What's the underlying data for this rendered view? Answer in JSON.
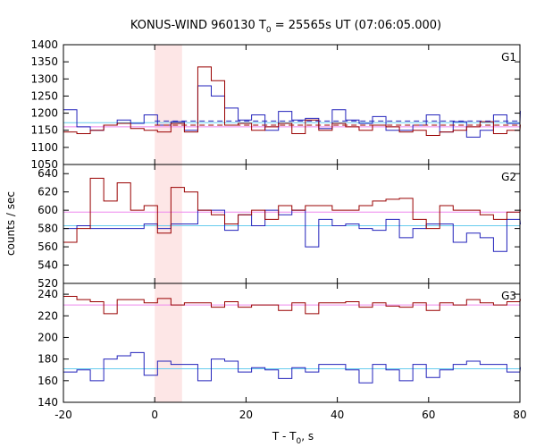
{
  "chart_data": {
    "type": "line",
    "title": "KONUS-WIND 960130 T",
    "title_sub": "0",
    "title_rest": " = 25565s UT (07:06:05.000)",
    "xlabel": "T - T",
    "xlabel_sub": "0",
    "xlabel_rest": ", s",
    "ylabel": "counts / sec",
    "xlim": [
      -20,
      80
    ],
    "xticks": [
      -20,
      0,
      20,
      40,
      60,
      80
    ],
    "highlight": {
      "from": 0,
      "to": 6,
      "color": "#fde6e6"
    },
    "colors": {
      "red": "#990000",
      "blue": "#2222bb",
      "pink": "#ee88ee",
      "cyan": "#66ccee",
      "frame": "#000000"
    },
    "panels": [
      {
        "name": "G1",
        "ylim": [
          1050,
          1400
        ],
        "yticks": [
          1050,
          1100,
          1150,
          1200,
          1250,
          1300,
          1350,
          1400
        ],
        "bin": 2.944,
        "start": -20,
        "red": [
          1145,
          1140,
          1150,
          1165,
          1170,
          1155,
          1150,
          1145,
          1170,
          1145,
          1335,
          1295,
          1165,
          1170,
          1150,
          1160,
          1170,
          1140,
          1180,
          1150,
          1170,
          1160,
          1150,
          1165,
          1160,
          1145,
          1150,
          1135,
          1145,
          1150,
          1160,
          1175,
          1140,
          1150,
          1165
        ],
        "blue": [
          1210,
          1160,
          1150,
          1165,
          1180,
          1170,
          1195,
          1165,
          1175,
          1150,
          1280,
          1250,
          1215,
          1180,
          1195,
          1150,
          1205,
          1180,
          1185,
          1155,
          1210,
          1180,
          1170,
          1190,
          1150,
          1150,
          1165,
          1195,
          1145,
          1175,
          1130,
          1150,
          1195,
          1170,
          1205
        ],
        "red_bg": 1165,
        "blue_bg": 1175,
        "red_fit": [
          [
            -20,
            1160
          ],
          [
            80,
            1160
          ]
        ],
        "blue_fit": [
          [
            -20,
            1172
          ],
          [
            80,
            1172
          ]
        ],
        "red_dash": [
          [
            0,
            1165
          ],
          [
            6,
            1165
          ]
        ],
        "blue_dash": [
          [
            0,
            1177
          ],
          [
            6,
            1177
          ]
        ]
      },
      {
        "name": "G2",
        "ylim": [
          520,
          650
        ],
        "yticks": [
          520,
          540,
          560,
          580,
          600,
          620,
          640
        ],
        "bin": 2.944,
        "start": -20,
        "red": [
          565,
          580,
          635,
          610,
          630,
          600,
          605,
          575,
          625,
          620,
          600,
          595,
          585,
          595,
          600,
          590,
          605,
          600,
          605,
          605,
          600,
          600,
          605,
          610,
          612,
          613,
          590,
          580,
          605,
          600,
          600,
          595,
          590,
          598,
          600
        ],
        "blue": [
          580,
          583,
          580,
          580,
          580,
          580,
          585,
          580,
          585,
          585,
          600,
          600,
          578,
          595,
          583,
          600,
          595,
          600,
          560,
          590,
          583,
          585,
          580,
          578,
          590,
          570,
          580,
          585,
          585,
          565,
          575,
          570,
          555,
          590,
          585
        ],
        "red_fit": [
          [
            -20,
            598
          ],
          [
            80,
            598
          ]
        ],
        "blue_fit": [
          [
            -20,
            583
          ],
          [
            80,
            583
          ]
        ]
      },
      {
        "name": "G3",
        "ylim": [
          140,
          250
        ],
        "yticks": [
          140,
          160,
          180,
          200,
          220,
          240
        ],
        "bin": 2.944,
        "start": -20,
        "red": [
          238,
          235,
          233,
          222,
          235,
          235,
          232,
          236,
          230,
          232,
          232,
          228,
          233,
          228,
          230,
          230,
          225,
          232,
          222,
          232,
          232,
          233,
          228,
          232,
          229,
          228,
          232,
          225,
          232,
          230,
          235,
          232,
          230,
          233,
          235
        ],
        "blue": [
          168,
          170,
          160,
          180,
          183,
          186,
          165,
          178,
          175,
          175,
          160,
          180,
          178,
          168,
          172,
          170,
          162,
          172,
          168,
          175,
          175,
          170,
          158,
          175,
          170,
          160,
          175,
          163,
          170,
          175,
          178,
          175,
          175,
          168,
          172
        ],
        "red_fit": [
          [
            -20,
            230
          ],
          [
            80,
            230
          ]
        ],
        "blue_fit": [
          [
            -20,
            171
          ],
          [
            80,
            171
          ]
        ]
      }
    ]
  },
  "labels": {
    "g1": "G1",
    "g2": "G2",
    "g3": "G3"
  }
}
